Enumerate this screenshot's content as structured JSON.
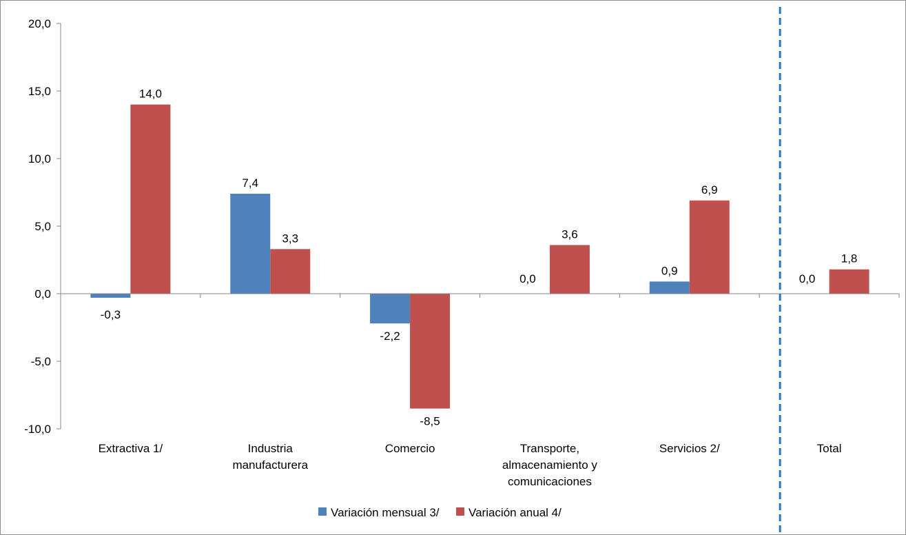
{
  "chart_data": {
    "type": "bar",
    "title": "",
    "xlabel": "",
    "ylabel": "",
    "ylim": [
      -10,
      20
    ],
    "yticks": [
      20,
      15,
      10,
      5,
      0,
      -5,
      -10
    ],
    "ytick_labels": [
      "20,0",
      "15,0",
      "10,0",
      "5,0",
      "0,0",
      "-5,0",
      "-10,0"
    ],
    "grid": false,
    "legend_position": "bottom",
    "categories": [
      [
        "Extractiva 1/"
      ],
      [
        "Industria",
        "manufacturera"
      ],
      [
        "Comercio"
      ],
      [
        "Transporte,",
        "almacenamiento y",
        "comunicaciones"
      ],
      [
        "Servicios 2/"
      ],
      [
        "Total"
      ]
    ],
    "series": [
      {
        "name": "Variación mensual 3/",
        "color": "#4f81bd",
        "values": [
          -0.3,
          7.4,
          -2.2,
          0.0,
          0.9,
          0.0
        ],
        "labels": [
          "-0,3",
          "7,4",
          "-2,2",
          "0,0",
          "0,9",
          "0,0"
        ]
      },
      {
        "name": "Variación anual 4/",
        "color": "#c0504d",
        "values": [
          14.0,
          3.3,
          -8.5,
          3.6,
          6.9,
          1.8
        ],
        "labels": [
          "14,0",
          "3,3",
          "-8,5",
          "3,6",
          "6,9",
          "1,8"
        ]
      }
    ],
    "separator": {
      "between_categories": [
        4,
        5
      ],
      "style": "dashed",
      "color": "#1f77c4"
    }
  }
}
